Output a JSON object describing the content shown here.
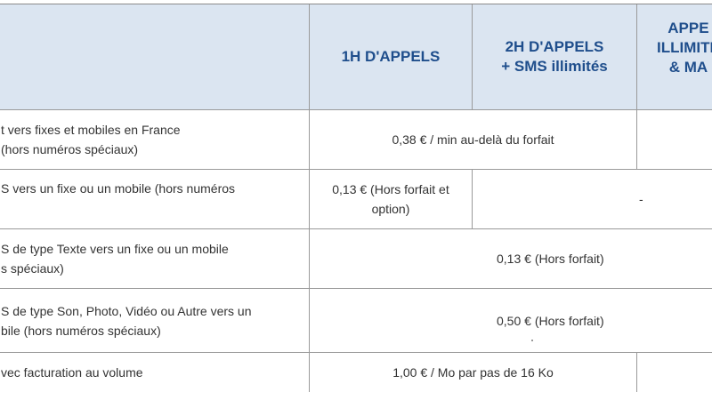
{
  "header": {
    "col_1h": "1H D'APPELS",
    "col_2h": "2H D'APPELS\n+ SMS illimités",
    "col_unlimited": "APPE\nILLIMITE\n& MA"
  },
  "rows": [
    {
      "label": "t vers fixes et mobiles en France\n(hors numéros spéciaux)",
      "value": "0,38 € / min au-delà du forfait"
    },
    {
      "label": "S vers un fixe ou un mobile (hors numéros",
      "value_1h": "0,13 € (Hors forfait et\noption)",
      "value_rest": "-"
    },
    {
      "label": "S de type Texte vers un fixe ou un mobile\ns spéciaux)",
      "value": "0,13 € (Hors forfait)"
    },
    {
      "label": "S de type Son, Photo, Vidéo ou Autre vers un\nbile (hors numéros spéciaux)",
      "value": "0,50 € (Hors forfait)"
    },
    {
      "label": "vec facturation au volume",
      "value": "1,00 € / Mo par pas de 16 Ko"
    }
  ],
  "colors": {
    "header_bg": "#dbe5f1",
    "header_text": "#1f4e8c",
    "grid": "#9a9a9a",
    "text": "#333333"
  }
}
